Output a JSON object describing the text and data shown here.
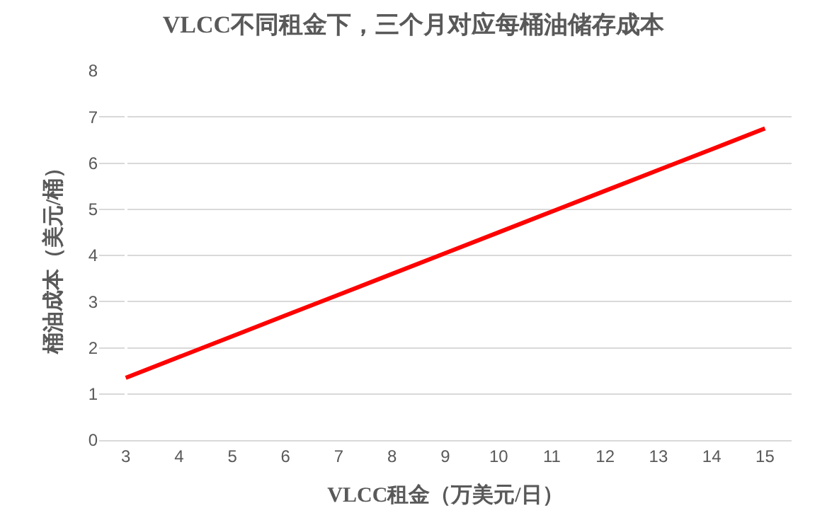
{
  "chart_data": {
    "type": "line",
    "title": "VLCC不同租金下，三个月对应每桶油储存成本",
    "xlabel": "VLCC租金（万美元/日）",
    "ylabel": "桶油成本（美元/桶）",
    "categories": [
      "3",
      "4",
      "5",
      "6",
      "7",
      "8",
      "9",
      "10",
      "11",
      "12",
      "13",
      "14",
      "15"
    ],
    "series": [
      {
        "color": "#ff0000",
        "values": [
          1.35,
          1.8,
          2.25,
          2.7,
          3.15,
          3.6,
          4.05,
          4.5,
          4.95,
          5.4,
          5.85,
          6.3,
          6.75
        ]
      }
    ],
    "ylim": [
      0,
      8
    ],
    "yticks": [
      0,
      1,
      2,
      3,
      4,
      5,
      6,
      7,
      8
    ],
    "grid": "y",
    "legend": false,
    "marker": "none",
    "line_style": "solid"
  }
}
